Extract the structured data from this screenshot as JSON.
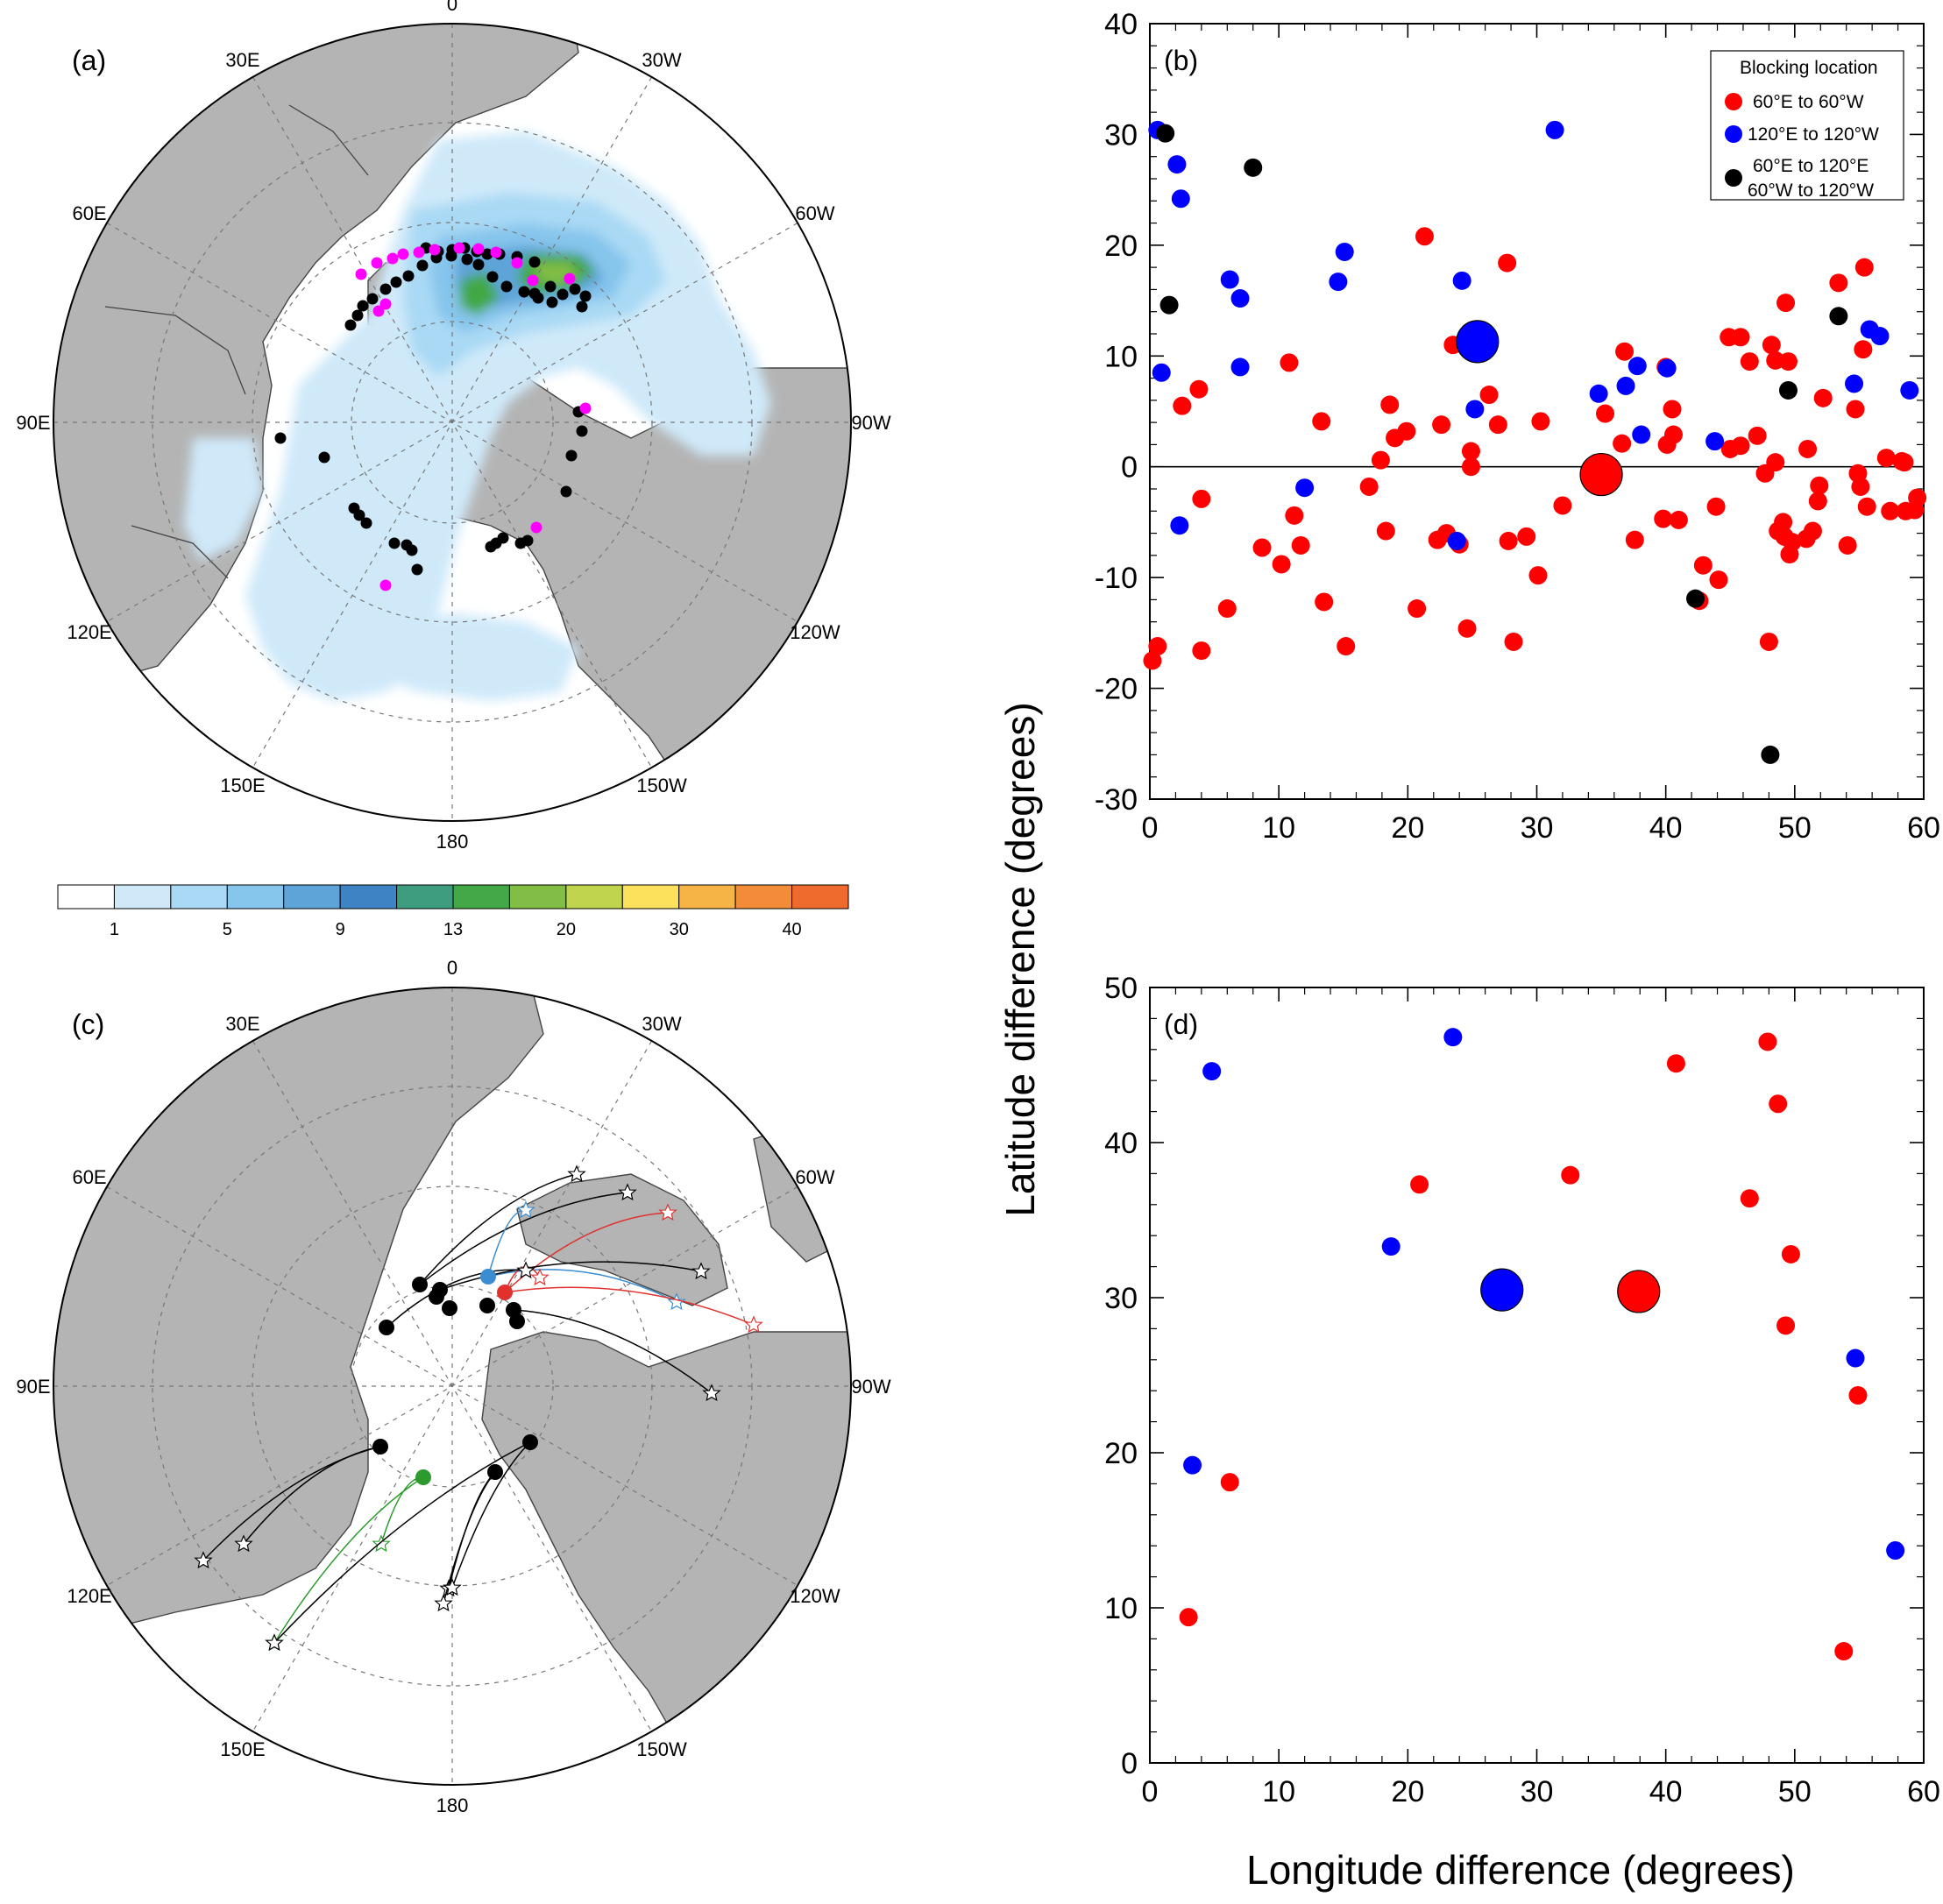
{
  "panels": {
    "a": "(a)",
    "b": "(b)",
    "c": "(c)",
    "d": "(d)"
  },
  "maps": {
    "lon_labels": [
      "0",
      "30W",
      "60W",
      "90W",
      "120W",
      "150W",
      "180",
      "150E",
      "120E",
      "90E",
      "60E",
      "30E"
    ],
    "colorbar": {
      "labels": [
        "1",
        "5",
        "9",
        "13",
        "20",
        "30",
        "40"
      ],
      "colors": [
        "#ffffff",
        "#cfe9f9",
        "#a9d9f4",
        "#86c5ec",
        "#5ea4d9",
        "#3e83c4",
        "#3f9d7f",
        "#43a845",
        "#82bd45",
        "#c0d44e",
        "#fbe15c",
        "#f6b447",
        "#f38c38",
        "#ee6b2d"
      ]
    },
    "colors": {
      "land": "#b4b4b4",
      "coast": "#444444",
      "grid": "#777777",
      "black_marker": "#000000",
      "magenta_marker": "#ff00ff",
      "track_blue": "#3a8dd0",
      "track_red": "#e0312f",
      "track_green": "#2c9a2c",
      "track_black": "#000000"
    }
  },
  "chart_data": [
    {
      "panel": "(b)",
      "type": "scatter",
      "xlabel": "Longitude difference (degrees)",
      "ylabel": "Latitude difference (degrees)",
      "xlim": [
        0,
        60
      ],
      "ylim": [
        -30,
        40
      ],
      "xticks": [
        0,
        10,
        20,
        30,
        40,
        50,
        60
      ],
      "yticks": [
        -30,
        -20,
        -10,
        0,
        10,
        20,
        30,
        40
      ],
      "zero_line": true,
      "legend": {
        "title": "Blocking location",
        "placement": "top-right",
        "entries": [
          "60°E to 60°W",
          "120°E to 120°W",
          "60°E to 120°E",
          "60°W to 120°W"
        ]
      },
      "series": [
        {
          "name": "60°E to 60°W",
          "color": "#ff0000",
          "points": [
            [
              0.2,
              -17.5
            ],
            [
              0.6,
              -16.2
            ],
            [
              2.5,
              5.5
            ],
            [
              3.8,
              7
            ],
            [
              4,
              -2.9
            ],
            [
              4,
              -16.6
            ],
            [
              6,
              -12.8
            ],
            [
              8.7,
              -7.3
            ],
            [
              10.2,
              -8.8
            ],
            [
              10.8,
              9.4
            ],
            [
              11.2,
              -4.4
            ],
            [
              11.7,
              -7.1
            ],
            [
              13.3,
              4.1
            ],
            [
              13.5,
              -12.2
            ],
            [
              15.2,
              -16.2
            ],
            [
              17,
              -1.8
            ],
            [
              17.9,
              0.6
            ],
            [
              18.3,
              -5.8
            ],
            [
              18.6,
              5.6
            ],
            [
              19,
              2.6
            ],
            [
              19.9,
              3.2
            ],
            [
              20.7,
              -12.8
            ],
            [
              21.3,
              20.8
            ],
            [
              22.3,
              -6.6
            ],
            [
              22.6,
              3.8
            ],
            [
              23,
              -6
            ],
            [
              23.5,
              11
            ],
            [
              24,
              -7
            ],
            [
              24.6,
              -14.6
            ],
            [
              24.9,
              1.4
            ],
            [
              24.9,
              0
            ],
            [
              26.3,
              6.5
            ],
            [
              27,
              3.8
            ],
            [
              27.7,
              18.4
            ],
            [
              27.8,
              -6.7
            ],
            [
              28.2,
              -15.8
            ],
            [
              29.2,
              -6.3
            ],
            [
              30.1,
              -9.8
            ],
            [
              30.3,
              4.1
            ],
            [
              32,
              -3.5
            ],
            [
              35.3,
              4.8
            ],
            [
              36.6,
              2.1
            ],
            [
              36.8,
              10.4
            ],
            [
              37.6,
              -6.6
            ],
            [
              39.8,
              -4.7
            ],
            [
              40,
              9
            ],
            [
              40.1,
              2
            ],
            [
              40.5,
              5.2
            ],
            [
              40.6,
              2.9
            ],
            [
              41,
              -4.8
            ],
            [
              42.6,
              -12.1
            ],
            [
              42.9,
              -8.9
            ],
            [
              43.9,
              -3.6
            ],
            [
              44.1,
              -10.2
            ],
            [
              44.9,
              11.7
            ],
            [
              45,
              1.6
            ],
            [
              45.8,
              1.9
            ],
            [
              45.8,
              11.7
            ],
            [
              46.5,
              9.5
            ],
            [
              47.1,
              2.8
            ],
            [
              47.7,
              -0.6
            ],
            [
              48,
              -15.8
            ],
            [
              48.2,
              11
            ],
            [
              48.5,
              9.6
            ],
            [
              48.5,
              0.4
            ],
            [
              48.7,
              -5.8
            ],
            [
              49.1,
              -5
            ],
            [
              49.2,
              -6.3
            ],
            [
              49.3,
              14.8
            ],
            [
              49.5,
              9.5
            ],
            [
              49.6,
              -7.9
            ],
            [
              49.8,
              -6.8
            ],
            [
              50.9,
              -6.5
            ],
            [
              51,
              1.6
            ],
            [
              51.4,
              -5.8
            ],
            [
              51.8,
              -3.1
            ],
            [
              51.9,
              -1.7
            ],
            [
              52.2,
              6.2
            ],
            [
              53.4,
              16.6
            ],
            [
              54.1,
              -7.1
            ],
            [
              54.7,
              5.2
            ],
            [
              54.9,
              -0.6
            ],
            [
              55.1,
              -1.8
            ],
            [
              55.3,
              10.6
            ],
            [
              55.4,
              18
            ],
            [
              55.6,
              -3.6
            ],
            [
              57.1,
              0.8
            ],
            [
              57.4,
              -4
            ],
            [
              58.3,
              0.5
            ],
            [
              58.5,
              0.4
            ],
            [
              58.6,
              -4
            ],
            [
              59.3,
              -3.9
            ],
            [
              59.5,
              -2.8
            ]
          ]
        },
        {
          "name": "120°E to 120°W",
          "color": "#0000ff",
          "points": [
            [
              0.6,
              30.4
            ],
            [
              0.9,
              8.5
            ],
            [
              2.1,
              27.3
            ],
            [
              2.4,
              24.2
            ],
            [
              2.3,
              -5.3
            ],
            [
              6.2,
              16.9
            ],
            [
              7,
              15.2
            ],
            [
              7,
              9
            ],
            [
              12,
              -1.9
            ],
            [
              14.6,
              16.7
            ],
            [
              15.1,
              19.4
            ],
            [
              23.8,
              -6.7
            ],
            [
              24.2,
              16.8
            ],
            [
              25.2,
              5.2
            ],
            [
              31.4,
              30.4
            ],
            [
              34.8,
              6.6
            ],
            [
              36.9,
              7.3
            ],
            [
              37.8,
              9.1
            ],
            [
              38.1,
              2.9
            ],
            [
              40.1,
              8.9
            ],
            [
              43.8,
              2.3
            ],
            [
              54.6,
              7.5
            ],
            [
              55.8,
              12.4
            ],
            [
              56.6,
              11.8
            ],
            [
              58.9,
              6.9
            ]
          ]
        },
        {
          "name": "60°E to 120°E / 60°W to 120°W",
          "color": "#000000",
          "points": [
            [
              1.2,
              30.1
            ],
            [
              1.5,
              14.6
            ],
            [
              8,
              27
            ],
            [
              42.3,
              -11.9
            ],
            [
              48.1,
              -26
            ],
            [
              49.5,
              6.9
            ],
            [
              53.4,
              13.6
            ]
          ]
        }
      ],
      "means": [
        {
          "color": "#0000ff",
          "x": 25.4,
          "y": 11.3
        },
        {
          "color": "#ff0000",
          "x": 35,
          "y": -0.7
        }
      ]
    },
    {
      "panel": "(d)",
      "type": "scatter",
      "xlabel": "Longitude difference (degrees)",
      "ylabel": "Latitude difference (degrees)",
      "xlim": [
        0,
        60
      ],
      "ylim": [
        0,
        50
      ],
      "xticks": [
        0,
        10,
        20,
        30,
        40,
        50,
        60
      ],
      "yticks": [
        0,
        10,
        20,
        30,
        40,
        50
      ],
      "series": [
        {
          "name": "60°E to 60°W",
          "color": "#ff0000",
          "points": [
            [
              3,
              9.4
            ],
            [
              6.2,
              18.1
            ],
            [
              20.9,
              37.3
            ],
            [
              32.6,
              37.9
            ],
            [
              40.8,
              45.1
            ],
            [
              46.5,
              36.4
            ],
            [
              47.9,
              46.5
            ],
            [
              48.7,
              42.5
            ],
            [
              49.3,
              28.2
            ],
            [
              49.7,
              32.8
            ],
            [
              53.8,
              7.2
            ],
            [
              54.9,
              23.7
            ]
          ]
        },
        {
          "name": "120°E to 120°W",
          "color": "#0000ff",
          "points": [
            [
              3.3,
              19.2
            ],
            [
              4.8,
              44.6
            ],
            [
              18.7,
              33.3
            ],
            [
              23.5,
              46.8
            ],
            [
              54.7,
              26.1
            ],
            [
              57.8,
              13.7
            ]
          ]
        }
      ],
      "means": [
        {
          "color": "#0000ff",
          "x": 27.3,
          "y": 30.5
        },
        {
          "color": "#ff0000",
          "x": 37.9,
          "y": 30.4
        }
      ]
    }
  ]
}
